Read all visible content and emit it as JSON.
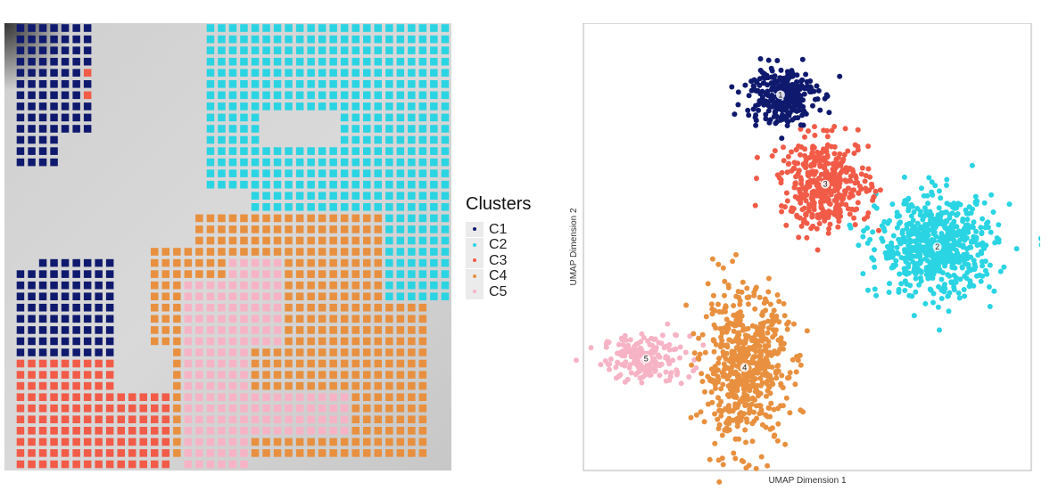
{
  "chart_data": [
    {
      "type": "scatter",
      "panel": "spatial",
      "title": "",
      "xlabel": "",
      "ylabel": "",
      "background": "grayscale tissue image",
      "marker": "square",
      "legend": {
        "title": "Clusters",
        "placement": "right",
        "entries": [
          {
            "label": "C1",
            "color": "#0f1a6e"
          },
          {
            "label": "C2",
            "color": "#2ad4e3"
          },
          {
            "label": "C3",
            "color": "#f15b47"
          },
          {
            "label": "C4",
            "color": "#e8903f"
          },
          {
            "label": "C5",
            "color": "#f7b3c6"
          }
        ]
      },
      "grid_cols": 40,
      "grid_rows": 40,
      "regions": [
        {
          "cluster": "C2",
          "note": "top-right region",
          "x": [
            18,
            39
          ],
          "y": [
            0,
            16
          ]
        },
        {
          "cluster": "C1",
          "note": "top-left region",
          "x": [
            1,
            7
          ],
          "y": [
            0,
            12
          ]
        },
        {
          "cluster": "C1",
          "note": "lower-left region",
          "x": [
            1,
            9
          ],
          "y": [
            21,
            30
          ]
        },
        {
          "cluster": "C3",
          "note": "bottom-left region",
          "x": [
            1,
            14
          ],
          "y": [
            29,
            38
          ]
        },
        {
          "cluster": "C4",
          "note": "bottom-center/right region",
          "x": [
            13,
            37
          ],
          "y": [
            18,
            38
          ]
        },
        {
          "cluster": "C5",
          "note": "center patch",
          "x": [
            15,
            30
          ],
          "y": [
            20,
            38
          ]
        }
      ]
    },
    {
      "type": "scatter",
      "panel": "umap",
      "title": "",
      "xlabel": "UMAP Dimension 1",
      "ylabel": "UMAP Dimension 2",
      "xlim": [
        0,
        100
      ],
      "ylim": [
        0,
        100
      ],
      "grid": false,
      "series": [
        {
          "name": "1",
          "color": "#0f1a6e",
          "center": [
            44,
            84
          ],
          "spread": [
            4.0,
            3.4
          ],
          "count": 260
        },
        {
          "name": "2",
          "color": "#2ad4e3",
          "center": [
            79,
            50
          ],
          "spread": [
            6.5,
            5.5
          ],
          "count": 650
        },
        {
          "name": "3",
          "color": "#f15b47",
          "center": [
            54,
            64
          ],
          "spread": [
            5.0,
            5.0
          ],
          "count": 400
        },
        {
          "name": "4",
          "color": "#e8903f",
          "center": [
            36,
            23
          ],
          "spread": [
            4.8,
            8.5
          ],
          "count": 600
        },
        {
          "name": "5",
          "color": "#f7b3c6",
          "center": [
            14,
            25
          ],
          "spread": [
            4.8,
            2.6
          ],
          "count": 180
        }
      ],
      "annotations": [
        {
          "text": "1",
          "x": 44,
          "y": 84
        },
        {
          "text": "2",
          "x": 79,
          "y": 50
        },
        {
          "text": "3",
          "x": 54,
          "y": 64
        },
        {
          "text": "4",
          "x": 36,
          "y": 23
        },
        {
          "text": "5",
          "x": 14,
          "y": 25
        }
      ]
    }
  ]
}
